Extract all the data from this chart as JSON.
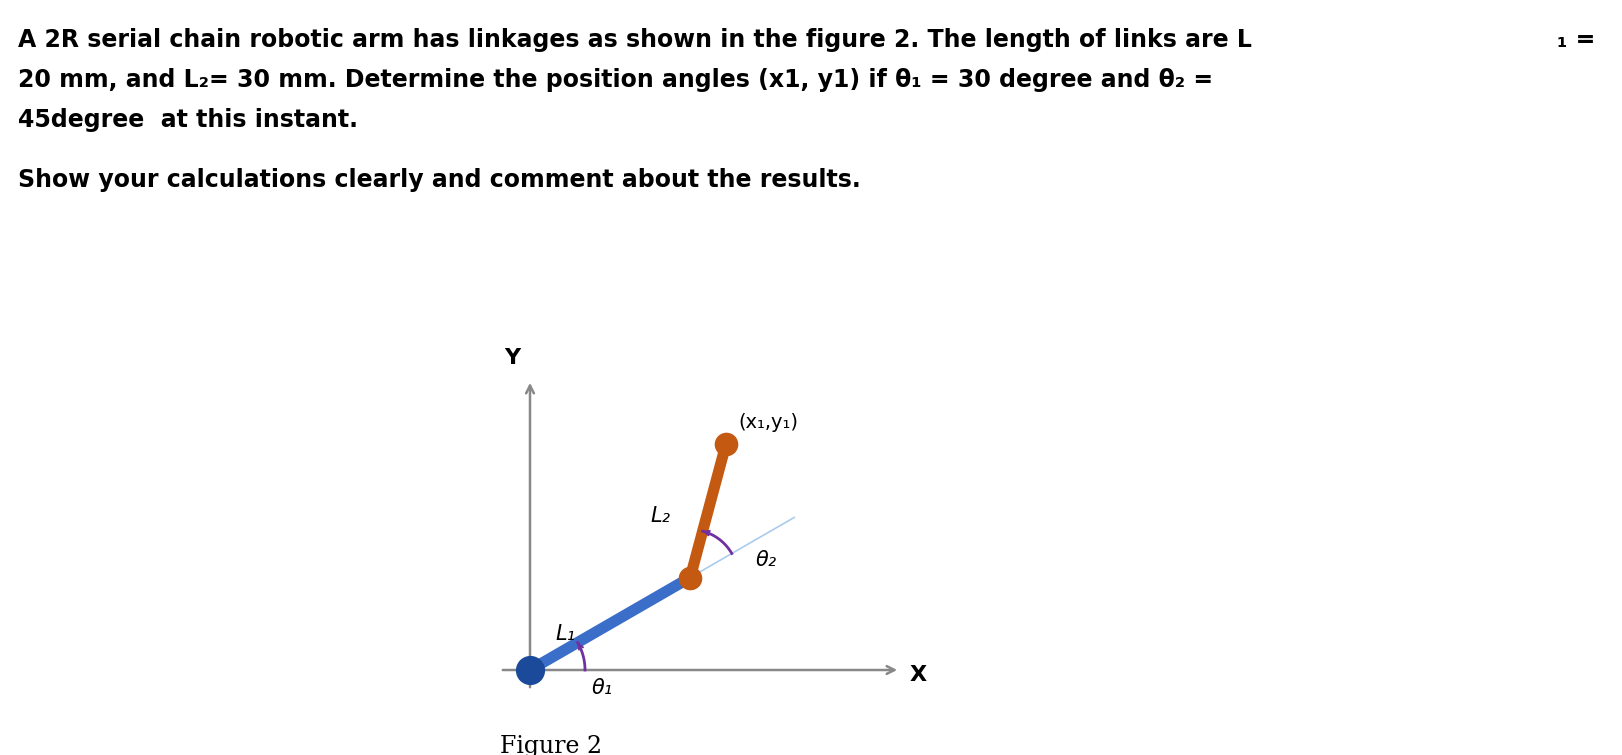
{
  "line1": "A 2R serial chain robotic arm has linkages as shown in the figure 2. The length of links are L",
  "line1_sub": "1",
  "line1_end": " =",
  "line2a": "20 mm, and L",
  "line2_sub": "2",
  "line2b": "= 30 mm. Determine the position angles (x1, y1) if θ",
  "line2_sub2": "1",
  "line2c": " = 30 degree and θ",
  "line2_sub3": "2",
  "line2d": " =",
  "line3": "45degree  at this instant.",
  "line4": "Show your calculations clearly and comment about the results.",
  "figure_label": "Figure 2",
  "background_color": "#ffffff",
  "text_color": "#000000",
  "theta1_deg": 30,
  "theta2_deg": 45,
  "L1_scale": 1.0,
  "L2_scale": 1.5,
  "link1_color": "#3a6ec8",
  "link2_color": "#c45911",
  "joint_base_color": "#1a4a99",
  "joint_mid_color": "#c45911",
  "joint_end_color": "#c45911",
  "arc_color": "#7030a0",
  "axis_color": "#888888",
  "ext_line_color": "#aaccee",
  "font_size_body": 17,
  "font_size_diagram": 14,
  "font_size_figure": 15
}
